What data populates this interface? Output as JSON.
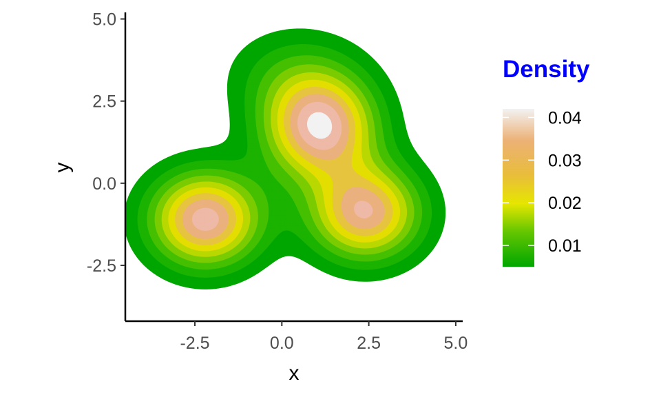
{
  "chart_data": {
    "type": "density-contour",
    "xlabel": "x",
    "ylabel": "y",
    "xlim": [
      -4.5,
      5.2
    ],
    "ylim": [
      -4.2,
      5.2
    ],
    "x_ticks": [
      -2.5,
      0.0,
      2.5,
      5.0
    ],
    "x_tick_labels": [
      "-2.5",
      "0.0",
      "2.5",
      "5.0"
    ],
    "y_ticks": [
      -2.5,
      0.0,
      2.5,
      5.0
    ],
    "y_tick_labels": [
      "-2.5",
      "0.0",
      "2.5",
      "5.0"
    ],
    "grid": false,
    "legend": {
      "title": "Density",
      "title_color": "#0000FF",
      "placement": "right",
      "breaks": [
        0.01,
        0.02,
        0.03,
        0.04
      ],
      "labels": [
        "0.01",
        "0.02",
        "0.03",
        "0.04"
      ],
      "range": [
        0.005,
        0.042
      ]
    },
    "contour_levels": [
      0.004,
      0.008,
      0.012,
      0.016,
      0.02,
      0.024,
      0.028,
      0.032,
      0.036,
      0.04
    ],
    "level_colors": [
      "#00A600",
      "#1BB300",
      "#44C000",
      "#7ACC00",
      "#B8D800",
      "#E3DE00",
      "#E6C43F",
      "#EAB17E",
      "#EEB9A7",
      "#F2F2F2"
    ],
    "components": [
      {
        "x": -2.2,
        "y": -1.1,
        "sx": 1.1,
        "sy": 1.0,
        "weight": 0.3
      },
      {
        "x": 1.1,
        "y": 1.7,
        "sx": 1.1,
        "sy": 1.1,
        "weight": 0.34
      },
      {
        "x": 2.4,
        "y": -0.9,
        "sx": 1.1,
        "sy": 1.0,
        "weight": 0.28
      },
      {
        "x": 0.3,
        "y": 3.3,
        "sx": 1.3,
        "sy": 1.0,
        "weight": 0.08
      }
    ]
  }
}
